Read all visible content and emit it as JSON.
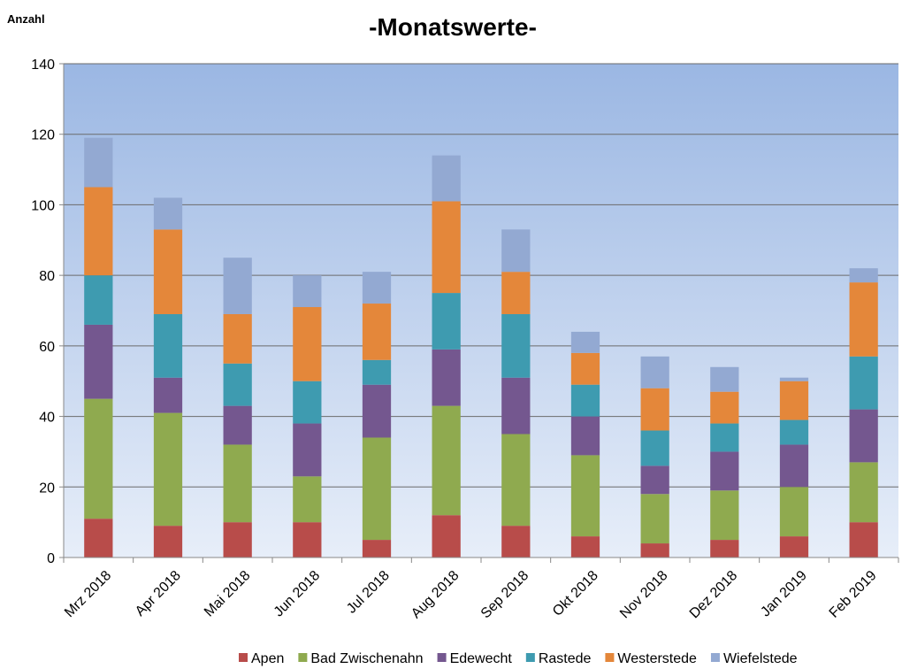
{
  "chart_data": {
    "type": "stacked_bar",
    "title": "-Monatswerte-",
    "y_label": "Anzahl",
    "categories": [
      "Mrz 2018",
      "Apr 2018",
      "Mai 2018",
      "Jun 2018",
      "Jul 2018",
      "Aug 2018",
      "Sep 2018",
      "Okt 2018",
      "Nov 2018",
      "Dez 2018",
      "Jan 2019",
      "Feb 2019"
    ],
    "series": [
      {
        "name": "Apen",
        "color": "#b84c4a",
        "values": [
          11,
          9,
          10,
          10,
          5,
          12,
          9,
          6,
          4,
          5,
          6,
          10
        ]
      },
      {
        "name": "Bad Zwischenahn",
        "color": "#8faa4f",
        "values": [
          34,
          32,
          22,
          13,
          29,
          31,
          26,
          23,
          14,
          14,
          14,
          17
        ]
      },
      {
        "name": "Edewecht",
        "color": "#74578f",
        "values": [
          21,
          10,
          11,
          15,
          15,
          16,
          16,
          11,
          8,
          11,
          12,
          15
        ]
      },
      {
        "name": "Rastede",
        "color": "#3e9bb0",
        "values": [
          14,
          18,
          12,
          12,
          7,
          16,
          18,
          9,
          10,
          8,
          7,
          15
        ]
      },
      {
        "name": "Westerstede",
        "color": "#e4873a",
        "values": [
          25,
          24,
          14,
          21,
          16,
          26,
          12,
          9,
          12,
          9,
          11,
          21
        ]
      },
      {
        "name": "Wiefelstede",
        "color": "#93a9d2",
        "values": [
          14,
          9,
          16,
          9,
          9,
          13,
          12,
          6,
          9,
          7,
          1,
          4
        ]
      }
    ],
    "ylim": [
      0,
      140
    ],
    "yticks": [
      0,
      20,
      40,
      60,
      80,
      100,
      120,
      140
    ],
    "grid": true,
    "legend": "bottom"
  }
}
